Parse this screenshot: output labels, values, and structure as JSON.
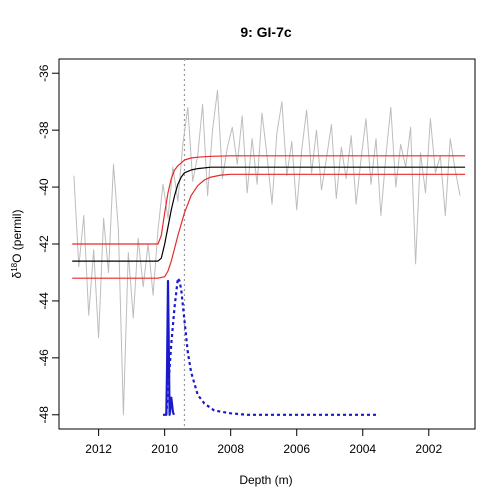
{
  "chart_data": {
    "type": "line",
    "title": "9: GI-7c",
    "xlabel": "Depth (m)",
    "ylabel_main": "δ",
    "ylabel_sup": "18",
    "ylabel_rest": "O (permil)",
    "xlim": [
      2013.2,
      2000.6
    ],
    "ylim": [
      -48.5,
      -35.5
    ],
    "xticks": [
      2012,
      2010,
      2008,
      2006,
      2004,
      2002
    ],
    "yticks": [
      -48,
      -46,
      -44,
      -42,
      -40,
      -38,
      -36
    ],
    "vline_x": 2009.4,
    "colors": {
      "raw": "#bdbdbd",
      "fit": "#000000",
      "ci": "#e8292a",
      "density": "#1a1acc",
      "vline": "#9a9a9a"
    },
    "series": [
      {
        "role": "raw",
        "x": [
          2012.75,
          2012.6,
          2012.45,
          2012.3,
          2012.15,
          2012.0,
          2011.85,
          2011.7,
          2011.55,
          2011.4,
          2011.25,
          2011.1,
          2010.95,
          2010.8,
          2010.65,
          2010.5,
          2010.35,
          2010.2,
          2010.05,
          2009.9,
          2009.75,
          2009.6,
          2009.45,
          2009.3,
          2009.15,
          2009.0,
          2008.85,
          2008.7,
          2008.55,
          2008.4,
          2008.25,
          2008.1,
          2007.95,
          2007.8,
          2007.65,
          2007.5,
          2007.35,
          2007.2,
          2007.05,
          2006.9,
          2006.75,
          2006.6,
          2006.45,
          2006.3,
          2006.15,
          2006.0,
          2005.85,
          2005.7,
          2005.55,
          2005.4,
          2005.25,
          2005.1,
          2004.95,
          2004.8,
          2004.65,
          2004.5,
          2004.35,
          2004.2,
          2004.05,
          2003.9,
          2003.75,
          2003.6,
          2003.45,
          2003.3,
          2003.15,
          2003.0,
          2002.85,
          2002.7,
          2002.55,
          2002.4,
          2002.25,
          2002.1,
          2001.95,
          2001.8,
          2001.65,
          2001.5,
          2001.35,
          2001.2,
          2001.05
        ],
        "y": [
          -39.6,
          -42.8,
          -41.0,
          -44.5,
          -42.2,
          -45.3,
          -41.1,
          -43.0,
          -39.2,
          -41.5,
          -48.0,
          -42.3,
          -44.6,
          -41.8,
          -43.5,
          -42.0,
          -43.8,
          -41.5,
          -39.9,
          -41.1,
          -39.3,
          -40.5,
          -38.5,
          -37.2,
          -39.8,
          -38.9,
          -37.1,
          -40.3,
          -38.0,
          -36.6,
          -39.7,
          -38.6,
          -37.9,
          -39.2,
          -37.5,
          -40.2,
          -38.3,
          -39.9,
          -37.4,
          -38.9,
          -40.6,
          -38.1,
          -37.0,
          -39.6,
          -38.4,
          -40.8,
          -38.7,
          -37.3,
          -39.5,
          -38.0,
          -40.1,
          -39.0,
          -37.8,
          -40.4,
          -38.6,
          -39.7,
          -38.2,
          -40.6,
          -39.0,
          -37.6,
          -39.9,
          -38.3,
          -41.0,
          -38.9,
          -37.2,
          -40.0,
          -38.5,
          -39.3,
          -37.9,
          -42.7,
          -38.8,
          -40.2,
          -37.6,
          -39.5,
          -38.9,
          -41.0,
          -38.3,
          -39.4,
          -40.3
        ]
      },
      {
        "role": "fit",
        "x": [
          2012.8,
          2011.0,
          2010.2,
          2010.1,
          2010.0,
          2009.9,
          2009.8,
          2009.7,
          2009.6,
          2009.5,
          2009.4,
          2009.2,
          2009.0,
          2008.6,
          2008.0,
          2006.0,
          2004.0,
          2002.0,
          2000.9
        ],
        "y": [
          -42.6,
          -42.6,
          -42.6,
          -42.5,
          -42.0,
          -41.4,
          -40.8,
          -40.3,
          -39.9,
          -39.65,
          -39.5,
          -39.4,
          -39.35,
          -39.3,
          -39.3,
          -39.3,
          -39.3,
          -39.3,
          -39.3
        ]
      },
      {
        "role": "ci-upper",
        "x": [
          2012.8,
          2011.0,
          2010.2,
          2010.1,
          2010.0,
          2009.9,
          2009.8,
          2009.7,
          2009.6,
          2009.5,
          2009.4,
          2009.2,
          2009.0,
          2008.6,
          2008.0,
          2006.0,
          2004.0,
          2002.0,
          2000.9
        ],
        "y": [
          -42.0,
          -42.0,
          -42.0,
          -41.7,
          -40.9,
          -40.2,
          -39.7,
          -39.4,
          -39.25,
          -39.15,
          -39.05,
          -38.98,
          -38.95,
          -38.92,
          -38.9,
          -38.9,
          -38.9,
          -38.9,
          -38.9
        ]
      },
      {
        "role": "ci-lower",
        "x": [
          2012.8,
          2011.0,
          2010.2,
          2010.0,
          2009.9,
          2009.8,
          2009.7,
          2009.6,
          2009.5,
          2009.4,
          2009.3,
          2009.2,
          2009.0,
          2008.8,
          2008.6,
          2008.3,
          2008.0,
          2006.0,
          2004.0,
          2002.0,
          2000.9
        ],
        "y": [
          -43.2,
          -43.2,
          -43.2,
          -43.15,
          -42.95,
          -42.6,
          -42.15,
          -41.7,
          -41.3,
          -40.9,
          -40.6,
          -40.3,
          -39.95,
          -39.75,
          -39.65,
          -39.58,
          -39.55,
          -39.55,
          -39.55,
          -39.55,
          -39.55
        ]
      },
      {
        "role": "density-solid",
        "x": [
          2010.05,
          2009.95,
          2009.93,
          2009.9,
          2009.87,
          2009.85,
          2009.8,
          2009.75,
          2009.72
        ],
        "y": [
          -48.0,
          -48.0,
          -46.5,
          -43.3,
          -46.0,
          -48.0,
          -47.4,
          -47.9,
          -48.0
        ]
      },
      {
        "role": "density-dashed",
        "x": [
          2009.95,
          2009.8,
          2009.7,
          2009.6,
          2009.55,
          2009.5,
          2009.4,
          2009.3,
          2009.2,
          2009.0,
          2008.8,
          2008.5,
          2008.0,
          2007.5,
          2007.0,
          2006.0,
          2005.0,
          2004.0,
          2003.6
        ],
        "y": [
          -48.0,
          -45.5,
          -44.2,
          -43.2,
          -43.3,
          -43.6,
          -44.7,
          -45.8,
          -46.5,
          -47.3,
          -47.6,
          -47.85,
          -47.95,
          -48.0,
          -48.0,
          -48.0,
          -48.0,
          -48.0,
          -48.0
        ]
      }
    ]
  }
}
